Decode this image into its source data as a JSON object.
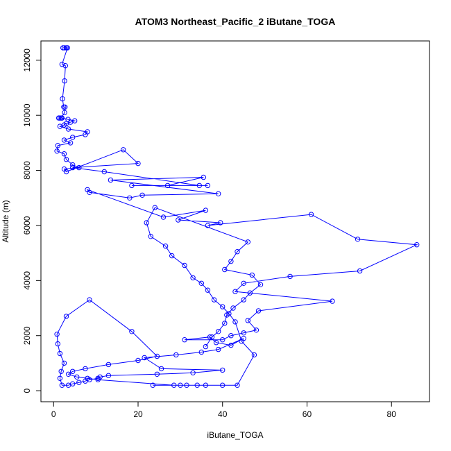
{
  "chart_data": {
    "type": "scatter",
    "title": "ATOM3 Northeast_Pacific_2 iButane_TOGA",
    "xlabel": "iButane_TOGA",
    "ylabel": "Altitude (m)",
    "xlim": [
      -3,
      89
    ],
    "ylim": [
      -400,
      12700
    ],
    "xticks": [
      0,
      20,
      40,
      60,
      80
    ],
    "yticks": [
      0,
      2000,
      4000,
      6000,
      8000,
      10000,
      12000
    ],
    "grid": false,
    "legend": "none",
    "colors": {
      "series": "#0000ff",
      "axes": "#000000"
    },
    "series": [
      {
        "x": [
          2.5,
          3.0,
          2.2,
          3.3,
          2.0,
          2.8,
          2.6,
          2.1,
          2.4,
          2.7,
          2.6,
          1.8,
          1.5,
          1.2,
          2.0,
          3.4,
          5.0,
          4.0,
          3.0,
          2.5,
          1.5,
          3.5,
          8.0,
          7.5,
          4.5,
          2.5,
          4.0,
          1.0,
          0.8,
          2.5,
          3.0,
          4.5,
          6.0,
          2.5,
          3.0,
          16.5,
          20.0,
          4.5,
          12.0,
          34.5,
          36.5,
          18.5,
          27.0,
          35.5,
          13.5,
          39.0,
          21.0,
          18.0,
          8.5,
          8.0,
          26.0,
          36.0,
          29.5,
          39.5,
          36.5,
          61.0,
          72.0,
          86.0,
          72.5,
          56.0,
          45.0,
          43.0,
          66.0,
          48.5,
          46.0,
          48.0,
          45.0,
          42.0,
          40.0,
          31.0,
          37.0,
          38.5,
          42.0,
          45.0,
          39.0,
          35.0,
          29.0,
          21.5,
          25.5,
          40.0,
          33.0,
          24.5,
          13.0,
          11.0,
          10.5,
          8.5,
          7.5,
          6.0,
          4.5,
          3.5,
          2.0,
          1.5,
          1.8,
          2.5,
          1.5,
          1.0,
          0.8,
          3.0,
          8.5,
          18.5,
          24.5,
          20.0,
          13.0,
          7.5,
          4.5,
          3.5,
          5.5,
          8.0,
          10.5,
          28.5,
          23.5,
          34.0,
          30.0,
          31.5,
          36.0,
          40.0,
          43.5,
          47.5,
          44.5,
          43.0,
          41.5,
          40.0,
          38.0,
          36.5,
          35.0,
          33.0,
          31.0,
          28.0,
          26.5,
          23.0,
          22.0,
          24.0,
          46.0,
          43.5,
          42.0,
          40.5,
          47.0,
          49.0,
          46.5,
          45.0,
          42.5,
          41.0,
          40.5,
          39.0,
          37.5,
          36.0
        ],
        "y": [
          12450,
          12450,
          12450,
          12450,
          11850,
          11800,
          11250,
          10600,
          10300,
          10300,
          10100,
          9900,
          9900,
          9900,
          9900,
          9850,
          9800,
          9750,
          9700,
          9650,
          9600,
          9500,
          9400,
          9300,
          9200,
          9100,
          9000,
          8900,
          8700,
          8600,
          8400,
          8200,
          8100,
          8050,
          7950,
          8750,
          8250,
          8100,
          7950,
          7450,
          7450,
          7450,
          7450,
          7750,
          7650,
          7150,
          7100,
          7000,
          7200,
          7300,
          6300,
          6550,
          6200,
          6100,
          6000,
          6400,
          5500,
          5300,
          4350,
          4150,
          3900,
          3600,
          3250,
          2900,
          2550,
          2200,
          2100,
          2000,
          1850,
          1850,
          1950,
          1750,
          1650,
          1900,
          1500,
          1400,
          1300,
          1200,
          800,
          750,
          650,
          600,
          550,
          500,
          450,
          400,
          350,
          300,
          250,
          200,
          200,
          450,
          700,
          1000,
          1350,
          1700,
          2050,
          2700,
          3300,
          2150,
          1250,
          1100,
          950,
          800,
          700,
          600,
          500,
          450,
          400,
          200,
          200,
          200,
          200,
          200,
          200,
          200,
          200,
          1300,
          1800,
          2500,
          2800,
          3050,
          3300,
          3650,
          3900,
          4100,
          4550,
          4900,
          5250,
          5600,
          6100,
          6650,
          5400,
          5050,
          4700,
          4400,
          4200,
          3850,
          3550,
          3300,
          3000,
          2750,
          2450,
          2150,
          1950,
          1600
        ]
      }
    ]
  }
}
